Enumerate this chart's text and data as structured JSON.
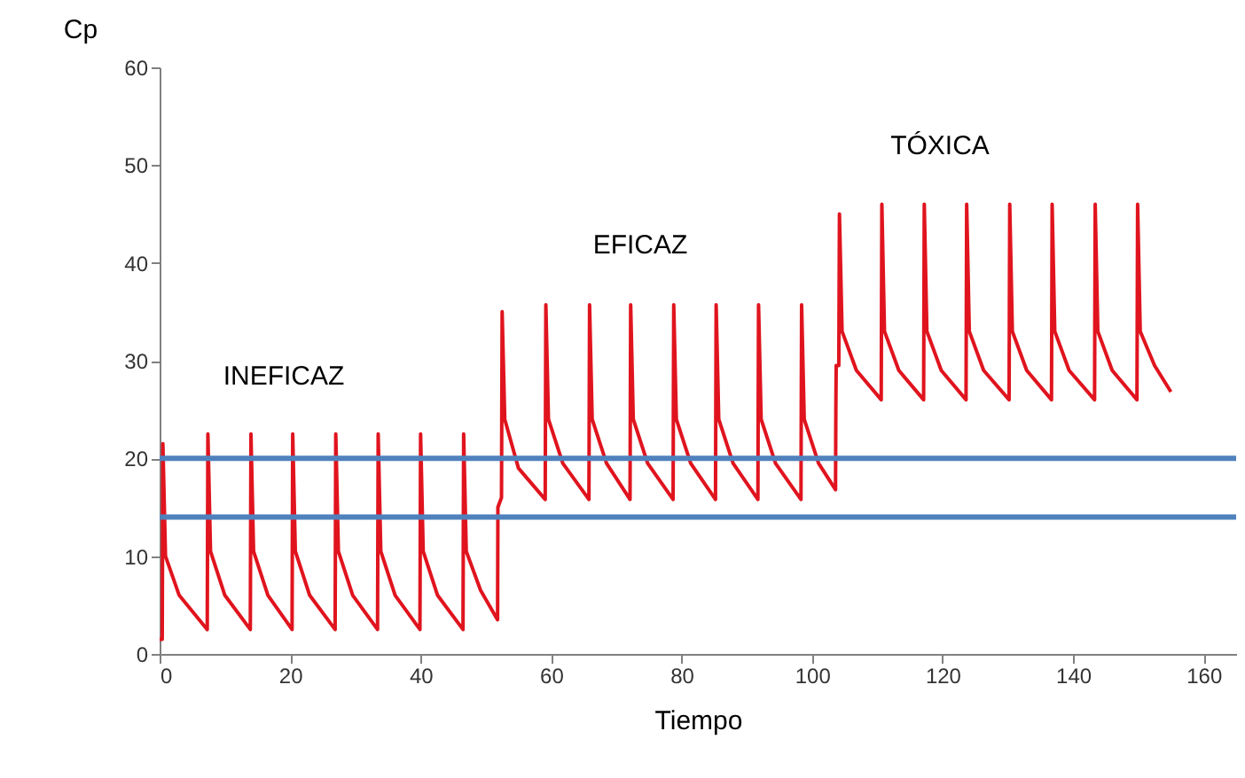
{
  "chart_data": {
    "type": "line",
    "xlabel": "Tiempo",
    "ylabel": "Cp",
    "xlim": [
      0,
      165
    ],
    "ylim": [
      0,
      60
    ],
    "xticks": [
      0,
      20,
      40,
      60,
      80,
      100,
      120,
      140,
      160
    ],
    "yticks": [
      0,
      10,
      20,
      30,
      40,
      50,
      60
    ],
    "grid": false,
    "marker": "none",
    "line_style": "solid",
    "series": [
      {
        "color": "#e0141e",
        "x": [
          0,
          0.4,
          0.5,
          0.9,
          3,
          7.3,
          7.4,
          7.8,
          10,
          13.9,
          14,
          14.4,
          16.6,
          20.3,
          20.4,
          20.8,
          23,
          26.9,
          27,
          27.4,
          29.6,
          33.4,
          33.5,
          33.9,
          36.1,
          39.9,
          40,
          40.4,
          42.6,
          46.5,
          46.6,
          47,
          49.2,
          51.8,
          51.85,
          52.4,
          52.5,
          52.9,
          55,
          59.1,
          59.2,
          59.6,
          61.8,
          65.8,
          65.9,
          66.3,
          68.5,
          72.1,
          72.2,
          72.6,
          74.8,
          78.7,
          78.8,
          79.2,
          81.4,
          85.2,
          85.3,
          85.7,
          87.9,
          91.7,
          91.8,
          92.2,
          94.4,
          98.3,
          98.4,
          98.8,
          101,
          103.6,
          103.65,
          103.7,
          104.1,
          104.2,
          104.6,
          106.8,
          110.6,
          110.7,
          111.1,
          113.3,
          117.1,
          117.2,
          117.6,
          119.8,
          123.6,
          123.7,
          124.1,
          126.3,
          130.2,
          130.3,
          130.7,
          132.9,
          136.7,
          136.8,
          137.2,
          139.4,
          143.3,
          143.4,
          143.8,
          146,
          149.8,
          149.9,
          150.3,
          152.5,
          155
        ],
        "values": [
          1.5,
          1.5,
          21.5,
          10,
          6,
          2.5,
          22.5,
          10.5,
          6,
          2.5,
          22.5,
          10.5,
          6,
          2.5,
          22.5,
          10.5,
          6,
          2.5,
          22.5,
          10.5,
          6,
          2.5,
          22.5,
          10.5,
          6,
          2.5,
          22.5,
          10.5,
          6,
          2.5,
          22.5,
          10.5,
          6.5,
          3.5,
          15,
          16,
          35,
          24,
          19,
          15.8,
          35.7,
          24,
          19.5,
          15.8,
          35.7,
          24,
          19.5,
          15.8,
          35.7,
          24,
          19.5,
          15.8,
          35.7,
          24,
          19.5,
          15.8,
          35.7,
          24,
          19.5,
          15.8,
          35.7,
          24,
          19.5,
          15.8,
          35.7,
          24,
          19.5,
          16.8,
          25,
          29.5,
          29.5,
          45,
          33,
          29,
          26,
          46,
          33,
          29,
          26,
          46,
          33,
          29,
          26,
          46,
          33,
          29,
          26,
          46,
          33,
          29,
          26,
          46,
          33,
          29,
          26,
          46,
          33,
          29,
          26,
          46,
          33,
          29.5,
          26.8
        ]
      }
    ],
    "ref_lines": [
      {
        "axis": "y",
        "value": 20,
        "color": "#4f81bd"
      },
      {
        "axis": "y",
        "value": 14,
        "color": "#4f81bd"
      }
    ],
    "annotations": [
      "INEFICAZ",
      "EFICAZ",
      "TÓXICA"
    ]
  }
}
